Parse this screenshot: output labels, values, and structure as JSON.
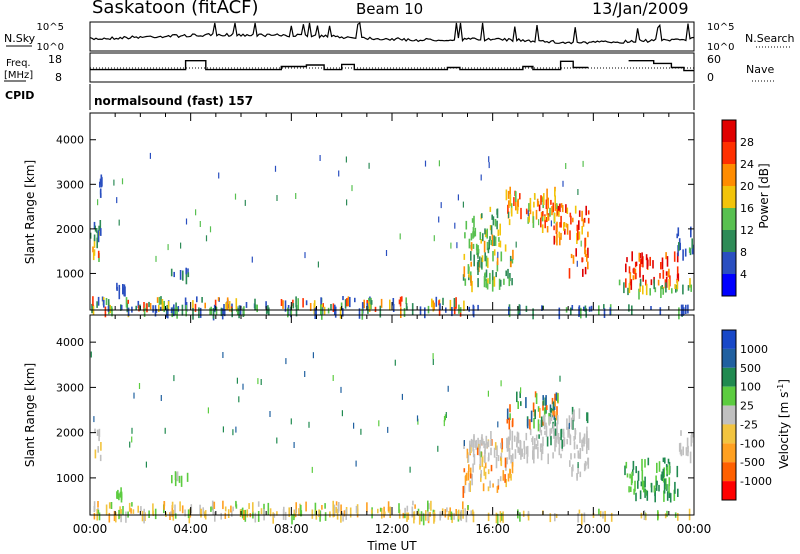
{
  "header": {
    "title": "Saskatoon (fitACF)",
    "beam": "Beam 10",
    "date": "13/Jan/2009"
  },
  "strip_labels": {
    "nsky": "N.Sky",
    "nsearch": "N.Search",
    "freq_line1": "Freq.",
    "freq_line2": "[MHz]",
    "nave": "Nave",
    "cpid": "CPID",
    "cpid_value": "normalsound (fast) 157"
  },
  "chart_data": [
    {
      "type": "line",
      "name": "noise",
      "yticklabels": [
        "10^5",
        "10^0"
      ],
      "right_yticklabels": [
        "10^5",
        "10^0"
      ]
    },
    {
      "type": "line",
      "name": "frequency-nave",
      "yticks": [
        8,
        18
      ],
      "ylim": [
        6,
        20
      ],
      "right_yticks": [
        0,
        60
      ],
      "freq_steps": [
        [
          0.0,
          12.0
        ],
        [
          3.8,
          12.0
        ],
        [
          3.8,
          16.3
        ],
        [
          4.6,
          16.3
        ],
        [
          4.6,
          12.0
        ],
        [
          7.6,
          12.0
        ],
        [
          7.6,
          13.5
        ],
        [
          8.6,
          13.5
        ],
        [
          8.6,
          14.2
        ],
        [
          9.3,
          14.2
        ],
        [
          9.3,
          12.0
        ],
        [
          10.0,
          12.0
        ],
        [
          10.0,
          14.5
        ],
        [
          10.5,
          14.5
        ],
        [
          10.5,
          12.0
        ],
        [
          14.2,
          12.0
        ],
        [
          14.2,
          13.0
        ],
        [
          14.7,
          13.0
        ],
        [
          14.7,
          12.0
        ],
        [
          17.2,
          12.0
        ],
        [
          17.2,
          13.5
        ],
        [
          17.6,
          13.5
        ],
        [
          17.6,
          12.0
        ],
        [
          18.7,
          12.0
        ],
        [
          18.7,
          16.0
        ],
        [
          19.2,
          16.0
        ],
        [
          19.2,
          13.0
        ],
        [
          19.8,
          13.0
        ]
      ],
      "freq_steps_late": [
        [
          21.4,
          16.3
        ],
        [
          22.4,
          16.3
        ],
        [
          22.4,
          15.0
        ],
        [
          23.1,
          15.0
        ],
        [
          23.1,
          13.0
        ],
        [
          23.6,
          13.0
        ],
        [
          23.6,
          11.5
        ],
        [
          24.0,
          11.5
        ]
      ]
    },
    {
      "type": "heatmap",
      "name": "power",
      "ylabel": "Slant Range [km]",
      "xlim": [
        0,
        24
      ],
      "ylim": [
        180,
        4600
      ],
      "yticks": [
        1000,
        2000,
        3000,
        4000
      ],
      "colorbar": {
        "label": "Power [dB]",
        "ticks": [
          "4",
          "8",
          "12",
          "16",
          "20",
          "24",
          "28"
        ],
        "colors": [
          "#0000ff",
          "#2a4fc0",
          "#2e8b57",
          "#58c050",
          "#f2c40a",
          "#ff8c00",
          "#ff3000",
          "#e00000"
        ]
      },
      "regions": [
        {
          "x": [
            0.05,
            0.4
          ],
          "y": [
            1450,
            2100
          ],
          "c": [
            3,
            6,
            5,
            4
          ]
        },
        {
          "x": [
            0.1,
            0.4
          ],
          "y": [
            1800,
            2200
          ],
          "c": [
            1,
            2
          ]
        },
        {
          "x": [
            0.35,
            0.45
          ],
          "y": [
            2800,
            3300
          ],
          "c": [
            1
          ]
        },
        {
          "x": [
            0.0,
            15.0
          ],
          "y": [
            220,
            500
          ],
          "c": [
            1,
            1,
            2,
            3,
            4,
            5,
            6,
            2
          ]
        },
        {
          "x": [
            0.0,
            24.0
          ],
          "y": [
            200,
            320
          ],
          "c": [
            1,
            2,
            3,
            1
          ]
        },
        {
          "x": [
            3.2,
            3.9
          ],
          "y": [
            950,
            1150
          ],
          "c": [
            1,
            2
          ]
        },
        {
          "x": [
            1.0,
            1.4
          ],
          "y": [
            650,
            800
          ],
          "c": [
            1
          ]
        },
        {
          "x": [
            14.8,
            16.8
          ],
          "y": [
            800,
            1900
          ],
          "c": [
            2,
            3,
            4,
            5,
            3,
            2
          ]
        },
        {
          "x": [
            15.5,
            16.3
          ],
          "y": [
            1900,
            2500
          ],
          "c": [
            2,
            3,
            4
          ]
        },
        {
          "x": [
            16.5,
            18.6
          ],
          "y": [
            2200,
            2950
          ],
          "c": [
            3,
            4,
            5,
            6
          ]
        },
        {
          "x": [
            17.8,
            19.8
          ],
          "y": [
            1800,
            2600
          ],
          "c": [
            4,
            5,
            6,
            7
          ]
        },
        {
          "x": [
            19.0,
            19.8
          ],
          "y": [
            1100,
            1600
          ],
          "c": [
            5,
            6,
            7
          ]
        },
        {
          "x": [
            14.8,
            15.5
          ],
          "y": [
            1900,
            2300
          ],
          "c": [
            2,
            3
          ]
        },
        {
          "x": [
            21.2,
            23.4
          ],
          "y": [
            850,
            1500
          ],
          "c": [
            6,
            7,
            7,
            6,
            5
          ]
        },
        {
          "x": [
            21.0,
            24.0
          ],
          "y": [
            650,
            900
          ],
          "c": [
            2,
            3,
            4
          ]
        },
        {
          "x": [
            23.3,
            24.0
          ],
          "y": [
            1500,
            2100
          ],
          "c": [
            1,
            2,
            3
          ]
        }
      ]
    },
    {
      "type": "heatmap",
      "name": "velocity",
      "ylabel": "Slant Range [km]",
      "xlabel": "Time UT",
      "xlim": [
        0,
        24
      ],
      "ylim": [
        180,
        4600
      ],
      "yticks": [
        1000,
        2000,
        3000,
        4000
      ],
      "xticklabels": [
        "00:00",
        "04:00",
        "08:00",
        "12:00",
        "16:00",
        "20:00",
        "00:00"
      ],
      "colorbar": {
        "label_main": "Velocity [m s",
        "label_sup": "-1",
        "label_end": "]",
        "ticks": [
          "1000",
          "500",
          "100",
          "25",
          "-25",
          "-100",
          "-500",
          "-1000"
        ],
        "colors": [
          "#1848c8",
          "#2060a0",
          "#208a50",
          "#5ccc40",
          "#c0c0c0",
          "#f2c440",
          "#ffa020",
          "#ff6000",
          "#ff0000"
        ]
      },
      "regions": [
        {
          "x": [
            0.05,
            0.4
          ],
          "y": [
            1450,
            2100
          ],
          "c": [
            4,
            4,
            5
          ]
        },
        {
          "x": [
            0.0,
            15.0
          ],
          "y": [
            220,
            500
          ],
          "c": [
            5,
            5,
            6,
            4,
            3
          ]
        },
        {
          "x": [
            0.0,
            24.0
          ],
          "y": [
            200,
            320
          ],
          "c": [
            4,
            5,
            3
          ]
        },
        {
          "x": [
            3.2,
            3.9
          ],
          "y": [
            950,
            1150
          ],
          "c": [
            3,
            4
          ]
        },
        {
          "x": [
            1.0,
            1.4
          ],
          "y": [
            650,
            800
          ],
          "c": [
            3
          ]
        },
        {
          "x": [
            14.8,
            16.8
          ],
          "y": [
            800,
            1900
          ],
          "c": [
            6,
            7,
            5,
            4
          ]
        },
        {
          "x": [
            15.0,
            19.8
          ],
          "y": [
            1500,
            2100
          ],
          "c": [
            4,
            4,
            4
          ]
        },
        {
          "x": [
            16.5,
            18.6
          ],
          "y": [
            2200,
            2950
          ],
          "c": [
            1,
            2,
            7,
            6,
            3
          ]
        },
        {
          "x": [
            17.8,
            19.8
          ],
          "y": [
            1800,
            2600
          ],
          "c": [
            4,
            4,
            2
          ]
        },
        {
          "x": [
            19.0,
            19.8
          ],
          "y": [
            1100,
            1600
          ],
          "c": [
            4
          ]
        },
        {
          "x": [
            21.2,
            23.4
          ],
          "y": [
            650,
            1500
          ],
          "c": [
            2,
            3,
            3,
            2
          ]
        },
        {
          "x": [
            23.3,
            24.0
          ],
          "y": [
            1500,
            2100
          ],
          "c": [
            4,
            4
          ]
        }
      ]
    }
  ]
}
